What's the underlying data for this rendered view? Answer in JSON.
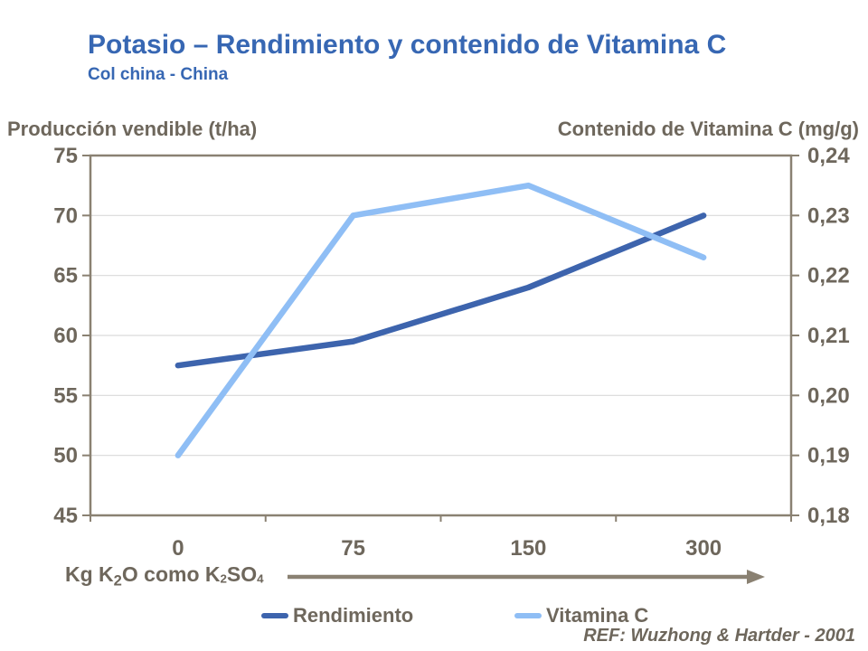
{
  "slide": {
    "title": "Potasio – Rendimiento y contenido de Vitamina C",
    "subtitle": "Col china - China",
    "ref": "REF: Wuzhong & Hartder - 2001"
  },
  "axes": {
    "left_title": "Producción vendible (t/ha)",
    "right_title": "Contenido de Vitamina C (mg/g)",
    "x_label_parts": [
      {
        "text": "Kg K"
      },
      {
        "text": "2",
        "sub": "lg"
      },
      {
        "text": "O como K"
      },
      {
        "text": "2",
        "sub": "sm"
      },
      {
        "text": "SO"
      },
      {
        "text": "4",
        "sub": "sm"
      }
    ]
  },
  "chart_data": {
    "type": "line",
    "title": "Potasio – Rendimiento y contenido de Vitamina C",
    "subtitle": "Col china - China",
    "categories": [
      "0",
      "75",
      "150",
      "300"
    ],
    "xlabel": "Kg K2O como K2SO4",
    "grid": true,
    "legend_position": "bottom",
    "left_axis": {
      "label": "Producción vendible (t/ha)",
      "min": 45,
      "max": 75,
      "tick_values": [
        75,
        70,
        65,
        60,
        55,
        50,
        45
      ],
      "tick_labels": [
        "75",
        "70",
        "65",
        "60",
        "55",
        "50",
        "45"
      ]
    },
    "right_axis": {
      "label": "Contenido de Vitamina C (mg/g)",
      "min": 0.18,
      "max": 0.24,
      "tick_values": [
        0.24,
        0.23,
        0.22,
        0.21,
        0.2,
        0.19,
        0.18
      ],
      "tick_labels": [
        "0,24",
        "0,23",
        "0,22",
        "0,21",
        "0,20",
        "0,19",
        "0,18"
      ]
    },
    "series": [
      {
        "name": "Rendimiento",
        "axis": "left",
        "color": "#3d64ad",
        "values": [
          57.5,
          59.5,
          64,
          70
        ]
      },
      {
        "name": "Vitamina C",
        "axis": "right",
        "color": "#8fbef5",
        "values": [
          0.19,
          0.23,
          0.235,
          0.223
        ]
      }
    ]
  },
  "legend": {
    "items": [
      {
        "label": "Rendimiento",
        "color": "#3d64ad"
      },
      {
        "label": "Vitamina C",
        "color": "#8fbef5"
      }
    ]
  },
  "colors": {
    "title_blue": "#3767b3",
    "text_gray": "#6e675c",
    "axis_line": "#8a8172",
    "gridline": "#dadada",
    "background": "#ffffff"
  }
}
